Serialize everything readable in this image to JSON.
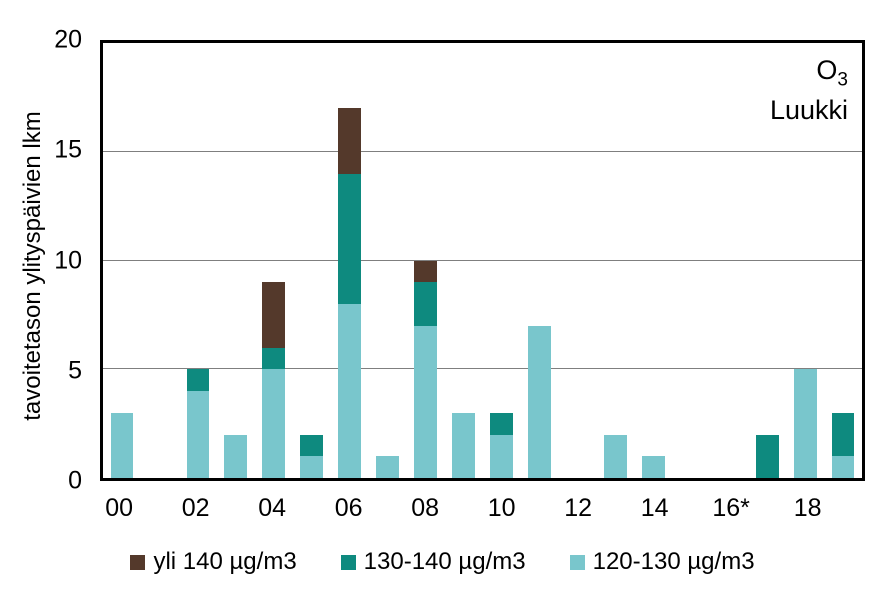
{
  "chart_data": {
    "type": "bar",
    "stacked": true,
    "title": {
      "formula_base": "O",
      "formula_sub": "3",
      "station": "Luukki"
    },
    "ylabel": "tavoitetason ylityspäivien lkm",
    "ylim": [
      0,
      20
    ],
    "yticks": [
      0,
      5,
      10,
      15,
      20
    ],
    "gridlines_at": [
      5,
      10,
      15
    ],
    "grid": true,
    "legend_position": "bottom",
    "categories": [
      "00",
      "01",
      "02",
      "03",
      "04",
      "05",
      "06",
      "07",
      "08",
      "09",
      "10",
      "11",
      "12",
      "13",
      "14",
      "15",
      "16",
      "17",
      "18",
      "19"
    ],
    "xtick_labels": [
      {
        "index": 0,
        "label": "00"
      },
      {
        "index": 2,
        "label": "02"
      },
      {
        "index": 4,
        "label": "04"
      },
      {
        "index": 6,
        "label": "06"
      },
      {
        "index": 8,
        "label": "08"
      },
      {
        "index": 10,
        "label": "10"
      },
      {
        "index": 12,
        "label": "12"
      },
      {
        "index": 14,
        "label": "14"
      },
      {
        "index": 16,
        "label": "16*"
      },
      {
        "index": 18,
        "label": "18"
      }
    ],
    "series": [
      {
        "name": "yli 140 µg/m3",
        "color": "#54392b",
        "values": [
          0,
          0,
          0,
          0,
          3,
          0,
          3,
          0,
          1,
          0,
          0,
          0,
          0,
          0,
          0,
          0,
          0,
          0,
          0,
          0
        ]
      },
      {
        "name": "130-140 µg/m3",
        "color": "#0e8a7f",
        "values": [
          0,
          0,
          1,
          0,
          1,
          1,
          6,
          0,
          2,
          0,
          1,
          0,
          0,
          0,
          0,
          0,
          0,
          2,
          0,
          2
        ]
      },
      {
        "name": "120-130 µg/m3",
        "color": "#79c6cc",
        "values": [
          3,
          0,
          4,
          2,
          5,
          1,
          8,
          1,
          7,
          3,
          2,
          7,
          0,
          2,
          1,
          0,
          0,
          0,
          5,
          1
        ]
      }
    ],
    "colors": {
      "frame": "#000000",
      "gridline": "#7f7f7f",
      "background": "#ffffff"
    }
  }
}
